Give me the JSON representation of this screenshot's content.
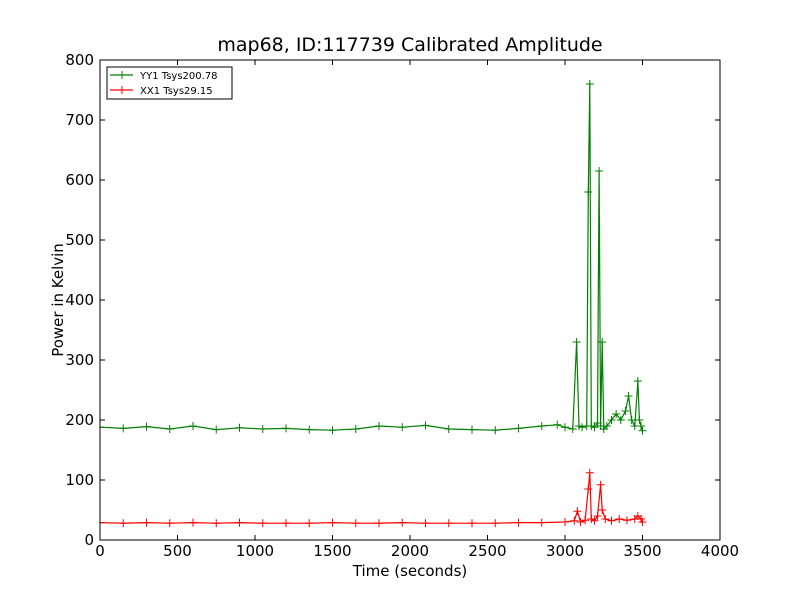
{
  "chart_data": {
    "type": "line",
    "title": "map68, ID:117739 Calibrated Amplitude",
    "xlabel": "Time (seconds)",
    "ylabel": "Power in Kelvin",
    "xlim": [
      0,
      4000
    ],
    "ylim": [
      0,
      800
    ],
    "xticks": [
      0,
      500,
      1000,
      1500,
      2000,
      2500,
      3000,
      3500,
      4000
    ],
    "yticks": [
      0,
      100,
      200,
      300,
      400,
      500,
      600,
      700,
      800
    ],
    "grid": false,
    "legend_position": "top-left",
    "series": [
      {
        "name": "YY1 Tsys200.78",
        "color": "#008000",
        "marker": "+",
        "x": [
          0,
          150,
          300,
          450,
          600,
          750,
          900,
          1050,
          1200,
          1350,
          1500,
          1650,
          1800,
          1950,
          2100,
          2250,
          2400,
          2550,
          2700,
          2850,
          2950,
          3000,
          3050,
          3075,
          3090,
          3110,
          3140,
          3150,
          3160,
          3170,
          3190,
          3210,
          3220,
          3230,
          3240,
          3250,
          3270,
          3300,
          3330,
          3360,
          3390,
          3410,
          3430,
          3450,
          3470,
          3480,
          3490,
          3500
        ],
        "y": [
          188,
          186,
          189,
          185,
          190,
          184,
          187,
          185,
          186,
          184,
          183,
          185,
          190,
          188,
          191,
          185,
          184,
          183,
          186,
          190,
          192,
          188,
          185,
          330,
          190,
          188,
          190,
          580,
          760,
          190,
          188,
          195,
          615,
          190,
          330,
          185,
          190,
          200,
          210,
          200,
          215,
          240,
          200,
          190,
          265,
          200,
          190,
          182
        ]
      },
      {
        "name": "XX1 Tsys29.15",
        "color": "#ff0000",
        "marker": "+",
        "x": [
          0,
          150,
          300,
          450,
          600,
          750,
          900,
          1050,
          1200,
          1350,
          1500,
          1650,
          1800,
          1950,
          2100,
          2250,
          2400,
          2550,
          2700,
          2850,
          3000,
          3060,
          3080,
          3100,
          3130,
          3150,
          3160,
          3170,
          3190,
          3210,
          3230,
          3240,
          3260,
          3300,
          3350,
          3400,
          3450,
          3470,
          3490,
          3500
        ],
        "y": [
          29,
          28,
          29,
          28,
          29,
          28,
          29,
          28,
          28,
          28,
          29,
          28,
          28,
          29,
          28,
          28,
          28,
          28,
          29,
          29,
          30,
          32,
          48,
          30,
          33,
          85,
          112,
          35,
          32,
          40,
          92,
          50,
          35,
          32,
          35,
          33,
          35,
          40,
          35,
          30
        ]
      }
    ]
  }
}
